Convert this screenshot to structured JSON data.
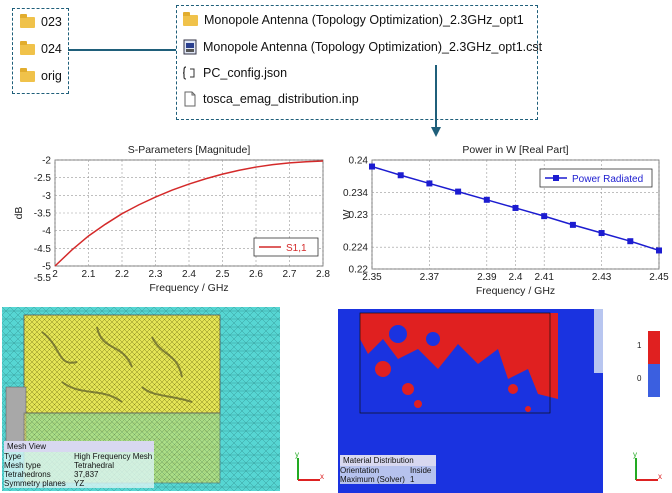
{
  "left_folders": [
    {
      "label": "023",
      "icon": "folder-icon"
    },
    {
      "label": "024",
      "icon": "folder-icon"
    },
    {
      "label": "orig",
      "icon": "folder-icon"
    }
  ],
  "right_files": [
    {
      "label": "Monopole Antenna (Topology Optimization)_2.3GHz_opt1",
      "icon": "folder-icon"
    },
    {
      "label": "Monopole Antenna (Topology Optimization)_2.3GHz_opt1.cst",
      "icon": "cst-file-icon"
    },
    {
      "label": "PC_config.json",
      "icon": "json-file-icon"
    },
    {
      "label": "tosca_emag_distribution.inp",
      "icon": "file-icon"
    }
  ],
  "chart_data": [
    {
      "type": "line",
      "title": "S-Parameters [Magnitude]",
      "xlabel": "Frequency / GHz",
      "ylabel": "dB",
      "xlim": [
        2,
        2.8
      ],
      "ylim": [
        -5,
        -2
      ],
      "xticks": [
        "2",
        "2.1",
        "2.2",
        "2.3",
        "2.4",
        "2.5",
        "2.6",
        "2.7",
        "2.8"
      ],
      "yticks": [
        "-2",
        "-2.5",
        "-3",
        "-3.5",
        "-4",
        "-4.5",
        "-5",
        "-5.5"
      ],
      "grid": true,
      "legend_position": "bottom-right",
      "series": [
        {
          "name": "S1,1",
          "color": "#d42a2a",
          "x": [
            2.0,
            2.05,
            2.1,
            2.15,
            2.2,
            2.25,
            2.3,
            2.35,
            2.4,
            2.45,
            2.5,
            2.55,
            2.6,
            2.65,
            2.7,
            2.75,
            2.8
          ],
          "y": [
            -5.0,
            -4.55,
            -4.15,
            -3.82,
            -3.52,
            -3.27,
            -3.05,
            -2.85,
            -2.68,
            -2.53,
            -2.4,
            -2.29,
            -2.2,
            -2.13,
            -2.08,
            -2.05,
            -2.03
          ]
        }
      ]
    },
    {
      "type": "line",
      "title": "Power in W [Real Part]",
      "xlabel": "Frequency / GHz",
      "ylabel": "W",
      "xlim": [
        2.35,
        2.45
      ],
      "ylim": [
        0.22,
        0.24
      ],
      "xticks": [
        "2.35",
        "2.37",
        "2.39",
        "2.4",
        "2.41",
        "2.43",
        "2.45"
      ],
      "yticks": [
        "0.24",
        "0.234",
        "0.23",
        "0.224",
        "0.22"
      ],
      "grid": true,
      "legend_position": "top-right",
      "series": [
        {
          "name": "Power Radiated",
          "color": "#1c1cd0",
          "x": [
            2.35,
            2.36,
            2.37,
            2.38,
            2.39,
            2.4,
            2.41,
            2.42,
            2.43,
            2.44,
            2.45
          ],
          "y": [
            0.2388,
            0.2372,
            0.2357,
            0.2342,
            0.2327,
            0.2312,
            0.2297,
            0.2281,
            0.2266,
            0.2251,
            0.2234
          ]
        }
      ]
    }
  ],
  "mesh_view": {
    "title": "Mesh View",
    "rows": [
      {
        "key": "Type",
        "value": "High Frequency Mesh"
      },
      {
        "key": "Mesh type",
        "value": "Tetrahedral"
      },
      {
        "key": "Tetrahedrons",
        "value": "37,837"
      },
      {
        "key": "Symmetry planes",
        "value": "YZ"
      }
    ]
  },
  "material_distribution": {
    "title": "Material Distribution",
    "rows": [
      {
        "key": "Orientation",
        "value": "Inside"
      },
      {
        "key": "Maximum (Solver)",
        "value": "1"
      }
    ],
    "scale_labels": [
      "1",
      "0"
    ],
    "colors": {
      "material": "#e02020",
      "void": "#1a33e0"
    }
  },
  "axis_labels": {
    "y": "y",
    "x": "x"
  }
}
